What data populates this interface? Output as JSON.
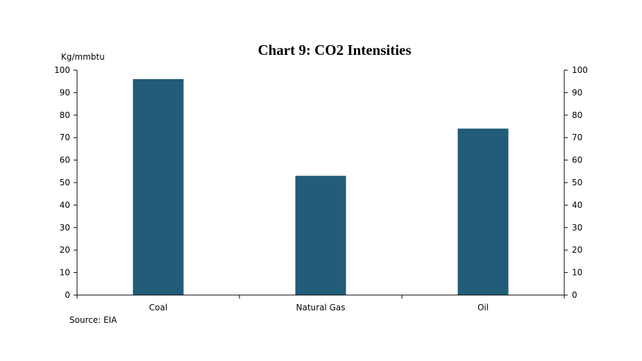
{
  "chart_data": {
    "type": "bar",
    "title": "Chart 9: CO2 Intensities",
    "ylabel": "Kg/mmbtu",
    "categories": [
      "Coal",
      "Natural Gas",
      "Oil"
    ],
    "values": [
      96,
      53,
      74
    ],
    "ylim": [
      0,
      100
    ],
    "y_ticks": [
      "0",
      "10",
      "20",
      "30",
      "40",
      "50",
      "60",
      "70",
      "80",
      "90",
      "100"
    ],
    "secondary_y_axis": true,
    "bar_color": "#215C78",
    "grid": false,
    "legend": "none",
    "source": "Source: EIA"
  }
}
